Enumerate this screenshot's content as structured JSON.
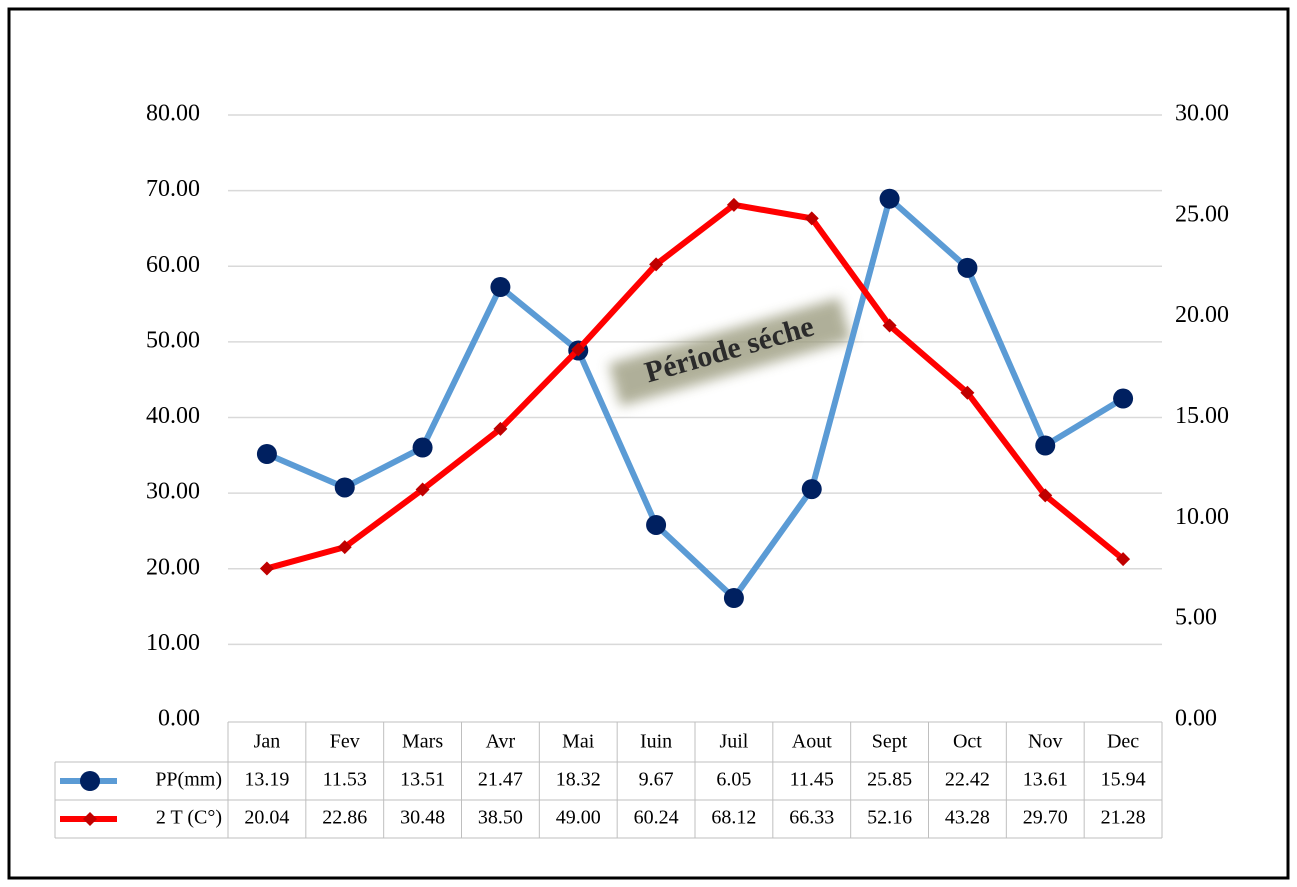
{
  "chart_data": {
    "type": "line",
    "categories": [
      "Jan",
      "Fev",
      "Mars",
      "Avr",
      "Mai",
      "Iuin",
      "Juil",
      "Aout",
      "Sept",
      "Oct",
      "Nov",
      "Dec"
    ],
    "series": [
      {
        "name": "PP(mm)",
        "color": "#5b9bd5",
        "marker_color": "#002060",
        "marker": "circle",
        "axis": "y2",
        "values": [
          13.19,
          11.53,
          13.51,
          21.47,
          18.32,
          9.67,
          6.05,
          11.45,
          25.85,
          22.42,
          13.61,
          15.94
        ],
        "value_labels": [
          "13.19",
          "11.53",
          "13.51",
          "21.47",
          "18.32",
          "9.67",
          "6.05",
          "11.45",
          "25.85",
          "22.42",
          "13.61",
          "15.94"
        ]
      },
      {
        "name": "2 T (C°)",
        "color": "#ff0000",
        "marker_color": "#c00000",
        "marker": "diamond",
        "values": [
          20.04,
          22.86,
          30.48,
          38.5,
          49,
          60.24,
          68.12,
          66.33,
          52.16,
          43.28,
          29.7,
          21.28
        ],
        "value_labels": [
          "20.04",
          "22.86",
          "30.48",
          "38.50",
          "49.00",
          "60.24",
          "68.12",
          "66.33",
          "52.16",
          "43.28",
          "29.70",
          "21.28"
        ]
      }
    ],
    "ylim": [
      0,
      80
    ],
    "yticks": [
      {
        "value": 0,
        "label": "0.00"
      },
      {
        "value": 10,
        "label": "10.00"
      },
      {
        "value": 20,
        "label": "20.00"
      },
      {
        "value": 30,
        "label": "30.00"
      },
      {
        "value": 40,
        "label": "40.00"
      },
      {
        "value": 50,
        "label": "50.00"
      },
      {
        "value": 60,
        "label": "60.00"
      },
      {
        "value": 70,
        "label": "70.00"
      },
      {
        "value": 80,
        "label": "80.00"
      }
    ],
    "y2lim": [
      0,
      30
    ],
    "y2ticks": [
      {
        "value": 0,
        "label": "0.00"
      },
      {
        "value": 5,
        "label": "5.00"
      },
      {
        "value": 10,
        "label": "10.00"
      },
      {
        "value": 15,
        "label": "15.00"
      },
      {
        "value": 20,
        "label": "20.00"
      },
      {
        "value": 25,
        "label": "25.00"
      },
      {
        "value": 30,
        "label": "30.00"
      }
    ],
    "grid": true,
    "annotation": "Période séche"
  }
}
